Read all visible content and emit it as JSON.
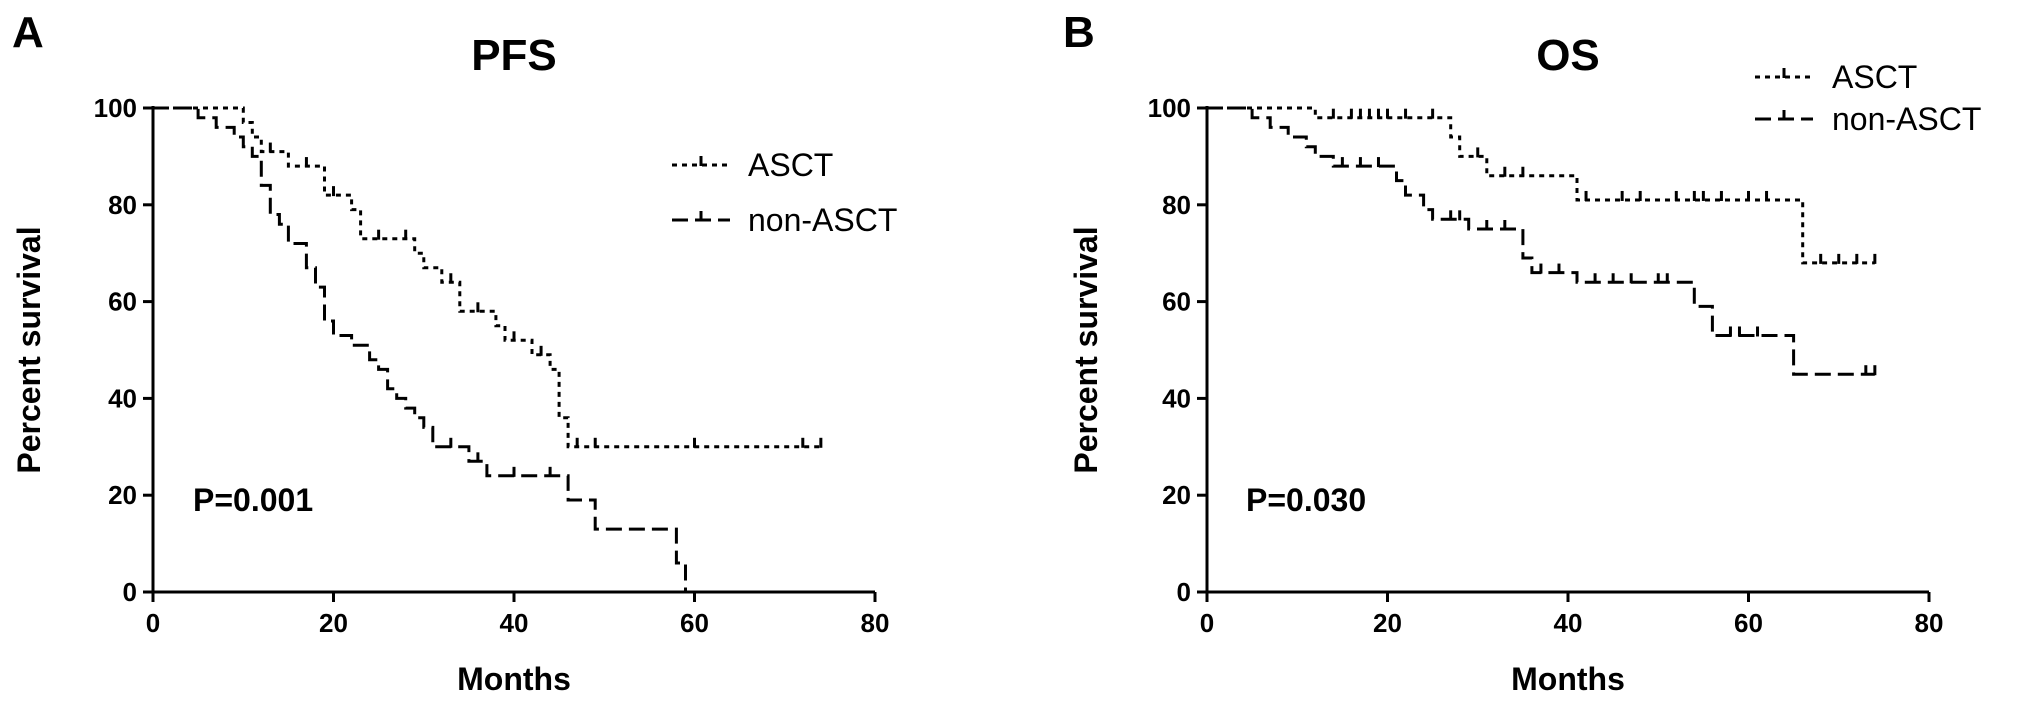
{
  "chart_data": [
    {
      "type": "line",
      "panel_label": "A",
      "title": "PFS",
      "xlabel": "Months",
      "ylabel": "Percent survival",
      "xlim": [
        0,
        80
      ],
      "ylim": [
        0,
        100
      ],
      "xticks": [
        0,
        20,
        40,
        60,
        80
      ],
      "yticks": [
        0,
        20,
        40,
        60,
        80,
        100
      ],
      "grid": false,
      "legend_position": "top-right",
      "annotation": "P=0.001",
      "series": [
        {
          "name": "ASCT",
          "style": "dotted-step",
          "steps": [
            [
              0,
              100
            ],
            [
              10,
              100
            ],
            [
              10,
              97
            ],
            [
              11,
              97
            ],
            [
              11,
              94
            ],
            [
              12,
              94
            ],
            [
              12,
              91
            ],
            [
              15,
              91
            ],
            [
              15,
              88
            ],
            [
              19,
              88
            ],
            [
              19,
              82
            ],
            [
              22,
              82
            ],
            [
              22,
              79
            ],
            [
              23,
              79
            ],
            [
              23,
              73
            ],
            [
              29,
              73
            ],
            [
              29,
              70
            ],
            [
              30,
              70
            ],
            [
              30,
              67
            ],
            [
              32,
              67
            ],
            [
              32,
              64
            ],
            [
              34,
              64
            ],
            [
              34,
              58
            ],
            [
              38,
              58
            ],
            [
              38,
              55
            ],
            [
              39,
              55
            ],
            [
              39,
              52
            ],
            [
              42,
              52
            ],
            [
              42,
              49
            ],
            [
              44,
              49
            ],
            [
              44,
              46
            ],
            [
              45,
              46
            ],
            [
              45,
              36
            ],
            [
              46,
              36
            ],
            [
              46,
              30
            ],
            [
              74,
              30
            ]
          ],
          "censored": [
            [
              13,
              91
            ],
            [
              17,
              88
            ],
            [
              20,
              82
            ],
            [
              25,
              73
            ],
            [
              28,
              73
            ],
            [
              33,
              64
            ],
            [
              36,
              58
            ],
            [
              40,
              52
            ],
            [
              43,
              49
            ],
            [
              47,
              30
            ],
            [
              49,
              30
            ],
            [
              60,
              30
            ],
            [
              72,
              30
            ],
            [
              74,
              30
            ]
          ]
        },
        {
          "name": "non-ASCT",
          "style": "dashed-step",
          "steps": [
            [
              0,
              100
            ],
            [
              5,
              100
            ],
            [
              5,
              98
            ],
            [
              7,
              98
            ],
            [
              7,
              96
            ],
            [
              9,
              96
            ],
            [
              9,
              94
            ],
            [
              10,
              94
            ],
            [
              10,
              92
            ],
            [
              11,
              92
            ],
            [
              11,
              90
            ],
            [
              12,
              90
            ],
            [
              12,
              84
            ],
            [
              13,
              84
            ],
            [
              13,
              78
            ],
            [
              14,
              78
            ],
            [
              14,
              76
            ],
            [
              15,
              76
            ],
            [
              15,
              72
            ],
            [
              17,
              72
            ],
            [
              17,
              67
            ],
            [
              18,
              67
            ],
            [
              18,
              63
            ],
            [
              19,
              63
            ],
            [
              19,
              56
            ],
            [
              20,
              56
            ],
            [
              20,
              53
            ],
            [
              22,
              53
            ],
            [
              22,
              51
            ],
            [
              24,
              51
            ],
            [
              24,
              48
            ],
            [
              25,
              48
            ],
            [
              25,
              46
            ],
            [
              26,
              46
            ],
            [
              26,
              42
            ],
            [
              27,
              42
            ],
            [
              27,
              40
            ],
            [
              28,
              40
            ],
            [
              28,
              38
            ],
            [
              29,
              38
            ],
            [
              29,
              36
            ],
            [
              30,
              36
            ],
            [
              30,
              34
            ],
            [
              31,
              34
            ],
            [
              31,
              30
            ],
            [
              35,
              30
            ],
            [
              35,
              27
            ],
            [
              37,
              27
            ],
            [
              37,
              24
            ],
            [
              46,
              24
            ],
            [
              46,
              19
            ],
            [
              49,
              19
            ],
            [
              49,
              13
            ],
            [
              58,
              13
            ],
            [
              58,
              6
            ],
            [
              59,
              6
            ],
            [
              59,
              0
            ]
          ],
          "censored": [
            [
              33,
              30
            ],
            [
              36,
              27
            ],
            [
              40,
              24
            ],
            [
              44,
              24
            ]
          ]
        }
      ]
    },
    {
      "type": "line",
      "panel_label": "B",
      "title": "OS",
      "xlabel": "Months",
      "ylabel": "Percent survival",
      "xlim": [
        0,
        80
      ],
      "ylim": [
        0,
        100
      ],
      "xticks": [
        0,
        20,
        40,
        60,
        80
      ],
      "yticks": [
        0,
        20,
        40,
        60,
        80,
        100
      ],
      "grid": false,
      "legend_position": "top-right",
      "annotation": "P=0.030",
      "series": [
        {
          "name": "ASCT",
          "style": "dotted-step",
          "steps": [
            [
              0,
              100
            ],
            [
              12,
              100
            ],
            [
              12,
              98
            ],
            [
              27,
              98
            ],
            [
              27,
              94
            ],
            [
              28,
              94
            ],
            [
              28,
              90
            ],
            [
              31,
              90
            ],
            [
              31,
              86
            ],
            [
              41,
              86
            ],
            [
              41,
              81
            ],
            [
              66,
              81
            ],
            [
              66,
              68
            ],
            [
              74,
              68
            ]
          ],
          "censored": [
            [
              14,
              98
            ],
            [
              16,
              98
            ],
            [
              17,
              98
            ],
            [
              18,
              98
            ],
            [
              19,
              98
            ],
            [
              20,
              98
            ],
            [
              22,
              98
            ],
            [
              25,
              98
            ],
            [
              30,
              90
            ],
            [
              33,
              86
            ],
            [
              35,
              86
            ],
            [
              42,
              81
            ],
            [
              46,
              81
            ],
            [
              48,
              81
            ],
            [
              52,
              81
            ],
            [
              54,
              81
            ],
            [
              55,
              81
            ],
            [
              57,
              81
            ],
            [
              60,
              81
            ],
            [
              62,
              81
            ],
            [
              68,
              68
            ],
            [
              70,
              68
            ],
            [
              72,
              68
            ],
            [
              74,
              68
            ]
          ]
        },
        {
          "name": "non-ASCT",
          "style": "dashed-step",
          "steps": [
            [
              0,
              100
            ],
            [
              5,
              100
            ],
            [
              5,
              98
            ],
            [
              7,
              98
            ],
            [
              7,
              96
            ],
            [
              9,
              96
            ],
            [
              9,
              94
            ],
            [
              11,
              94
            ],
            [
              11,
              92
            ],
            [
              12,
              92
            ],
            [
              12,
              90
            ],
            [
              14,
              90
            ],
            [
              14,
              88
            ],
            [
              21,
              88
            ],
            [
              21,
              85
            ],
            [
              22,
              85
            ],
            [
              22,
              82
            ],
            [
              24,
              82
            ],
            [
              24,
              79
            ],
            [
              25,
              79
            ],
            [
              25,
              77
            ],
            [
              29,
              77
            ],
            [
              29,
              75
            ],
            [
              35,
              75
            ],
            [
              35,
              69
            ],
            [
              36,
              69
            ],
            [
              36,
              66
            ],
            [
              41,
              66
            ],
            [
              41,
              64
            ],
            [
              54,
              64
            ],
            [
              54,
              59
            ],
            [
              56,
              59
            ],
            [
              56,
              53
            ],
            [
              65,
              53
            ],
            [
              65,
              45
            ],
            [
              74,
              45
            ]
          ],
          "censored": [
            [
              15,
              88
            ],
            [
              17,
              88
            ],
            [
              19,
              88
            ],
            [
              27,
              77
            ],
            [
              28,
              77
            ],
            [
              31,
              75
            ],
            [
              33,
              75
            ],
            [
              37,
              66
            ],
            [
              39,
              66
            ],
            [
              43,
              64
            ],
            [
              45,
              64
            ],
            [
              47,
              64
            ],
            [
              50,
              64
            ],
            [
              51,
              64
            ],
            [
              58,
              53
            ],
            [
              59,
              53
            ],
            [
              61,
              53
            ],
            [
              73,
              45
            ],
            [
              74,
              45
            ]
          ]
        }
      ]
    }
  ]
}
